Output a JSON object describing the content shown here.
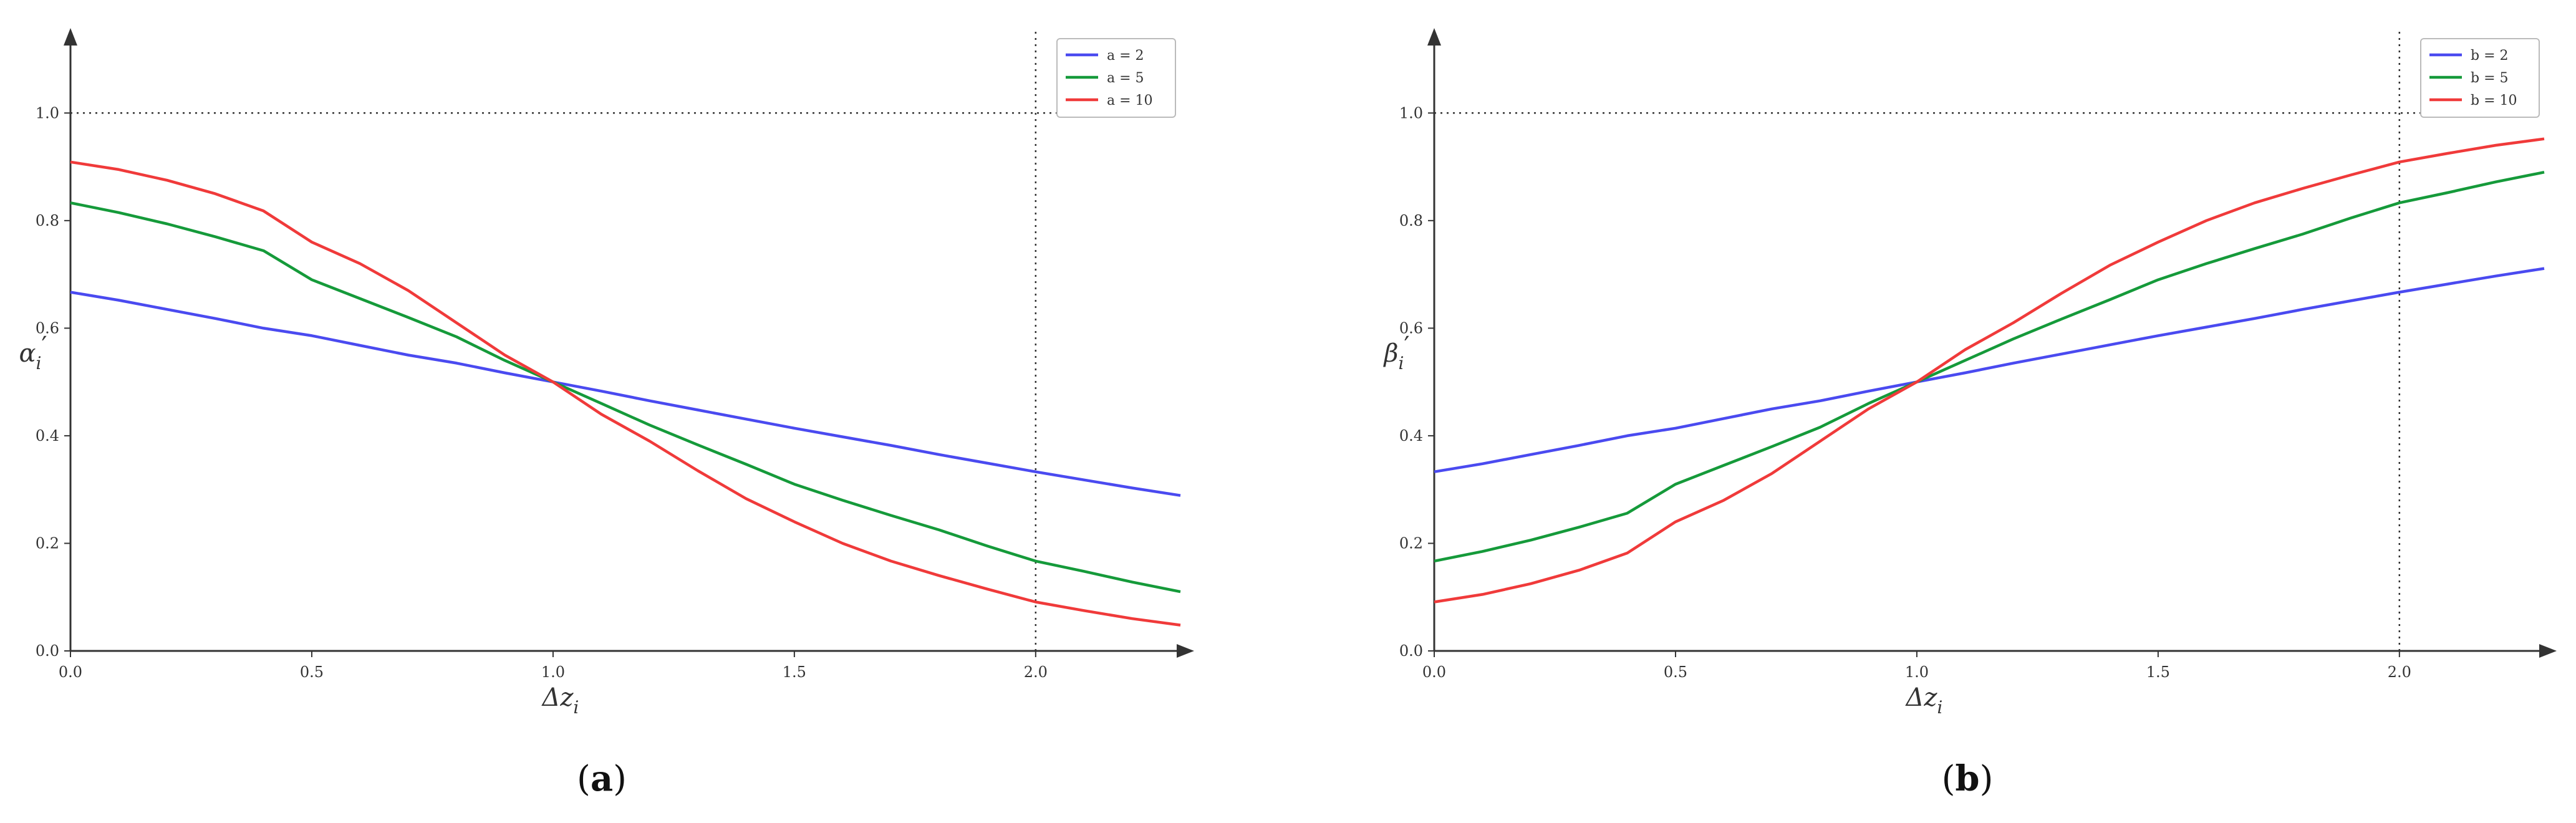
{
  "chart_data": [
    {
      "type": "line",
      "panel_label": "(a)",
      "panel_letter": "a",
      "xlabel": "Δz_i",
      "ylabel": "α_i′",
      "xlim": [
        0,
        2.3
      ],
      "ylim": [
        0,
        1.1
      ],
      "x_ticks": [
        "0.0",
        "0.5",
        "1.0",
        "1.5",
        "2.0"
      ],
      "y_ticks": [
        "0.0",
        "0.2",
        "0.4",
        "0.6",
        "0.8",
        "1.0"
      ],
      "x_tick_values": [
        0,
        0.5,
        1,
        1.5,
        2
      ],
      "y_tick_values": [
        0,
        0.2,
        0.4,
        0.6,
        0.8,
        1.0
      ],
      "reference_lines": {
        "horizontal_y": 1.0,
        "vertical_x": 2.0,
        "style": "dotted"
      },
      "grid": false,
      "legend_position": "top-right",
      "x": [
        0,
        0.1,
        0.2,
        0.3,
        0.4,
        0.5,
        0.6,
        0.7,
        0.8,
        0.9,
        1.0,
        1.1,
        1.2,
        1.3,
        1.4,
        1.5,
        1.6,
        1.7,
        1.8,
        1.9,
        2.0,
        2.1,
        2.2,
        2.3
      ],
      "series": [
        {
          "name": "a = 2",
          "color": "#4a4af0",
          "values": [
            0.667,
            0.652,
            0.635,
            0.618,
            0.6,
            0.586,
            0.568,
            0.55,
            0.535,
            0.517,
            0.5,
            0.483,
            0.465,
            0.448,
            0.431,
            0.414,
            0.398,
            0.382,
            0.365,
            0.349,
            0.333,
            0.318,
            0.303,
            0.289
          ]
        },
        {
          "name": "a = 5",
          "color": "#159a3a",
          "values": [
            0.833,
            0.815,
            0.794,
            0.77,
            0.744,
            0.69,
            0.655,
            0.62,
            0.584,
            0.54,
            0.5,
            0.46,
            0.42,
            0.383,
            0.347,
            0.31,
            0.28,
            0.252,
            0.225,
            0.195,
            0.167,
            0.148,
            0.128,
            0.11
          ]
        },
        {
          "name": "a = 10",
          "color": "#f03a3a",
          "values": [
            0.909,
            0.895,
            0.875,
            0.85,
            0.818,
            0.76,
            0.72,
            0.67,
            0.61,
            0.55,
            0.5,
            0.44,
            0.39,
            0.335,
            0.283,
            0.24,
            0.2,
            0.167,
            0.14,
            0.115,
            0.091,
            0.075,
            0.06,
            0.048
          ]
        }
      ]
    },
    {
      "type": "line",
      "panel_label": "(b)",
      "panel_letter": "b",
      "xlabel": "Δz_i",
      "ylabel": "β_i′",
      "xlim": [
        0,
        2.3
      ],
      "ylim": [
        0,
        1.1
      ],
      "x_ticks": [
        "0.0",
        "0.5",
        "1.0",
        "1.5",
        "2.0"
      ],
      "y_ticks": [
        "0.0",
        "0.2",
        "0.4",
        "0.6",
        "0.8",
        "1.0"
      ],
      "x_tick_values": [
        0,
        0.5,
        1,
        1.5,
        2
      ],
      "y_tick_values": [
        0,
        0.2,
        0.4,
        0.6,
        0.8,
        1.0
      ],
      "reference_lines": {
        "horizontal_y": 1.0,
        "vertical_x": 2.0,
        "style": "dotted"
      },
      "grid": false,
      "legend_position": "top-right",
      "x": [
        0,
        0.1,
        0.2,
        0.3,
        0.4,
        0.5,
        0.6,
        0.7,
        0.8,
        0.9,
        1.0,
        1.1,
        1.2,
        1.3,
        1.4,
        1.5,
        1.6,
        1.7,
        1.8,
        1.9,
        2.0,
        2.1,
        2.2,
        2.3
      ],
      "series": [
        {
          "name": "b = 2",
          "color": "#4a4af0",
          "values": [
            0.333,
            0.348,
            0.365,
            0.382,
            0.4,
            0.414,
            0.432,
            0.45,
            0.465,
            0.483,
            0.5,
            0.517,
            0.535,
            0.552,
            0.569,
            0.586,
            0.602,
            0.618,
            0.635,
            0.651,
            0.667,
            0.682,
            0.697,
            0.711
          ]
        },
        {
          "name": "b = 5",
          "color": "#159a3a",
          "values": [
            0.167,
            0.185,
            0.206,
            0.23,
            0.256,
            0.31,
            0.345,
            0.38,
            0.416,
            0.46,
            0.5,
            0.54,
            0.58,
            0.617,
            0.653,
            0.69,
            0.72,
            0.748,
            0.775,
            0.805,
            0.833,
            0.852,
            0.872,
            0.89
          ]
        },
        {
          "name": "b = 10",
          "color": "#f03a3a",
          "values": [
            0.091,
            0.105,
            0.125,
            0.15,
            0.182,
            0.24,
            0.28,
            0.33,
            0.39,
            0.45,
            0.5,
            0.56,
            0.61,
            0.665,
            0.717,
            0.76,
            0.8,
            0.833,
            0.86,
            0.885,
            0.909,
            0.925,
            0.94,
            0.952
          ]
        }
      ]
    }
  ]
}
